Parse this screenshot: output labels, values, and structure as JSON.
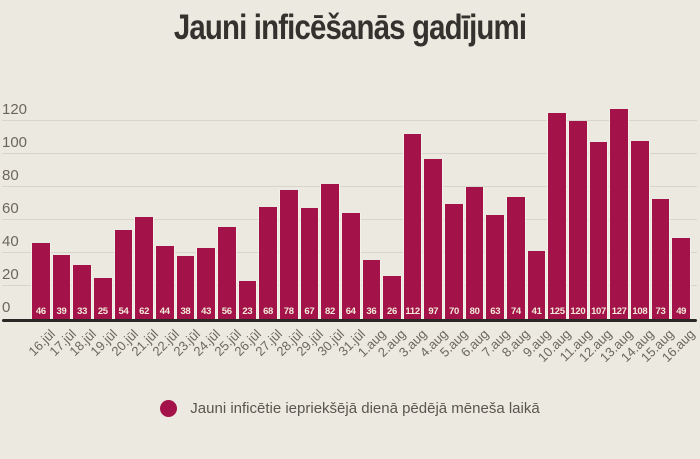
{
  "title": "Jauni inficēšanās gadījumi",
  "legend": {
    "label": "Jauni inficētie iepriekšējā dienā pēdējā mēneša laikā"
  },
  "colors": {
    "background": "#ece9e0",
    "bar": "#a31349",
    "bar_separator": "#f4f1e9",
    "grid": "#d8d5cc",
    "axis": "#2a2824",
    "title_text": "#34322e",
    "axis_label": "#6b675f",
    "value_label": "#f2ead9",
    "legend_text": "#5a564f"
  },
  "chart_data": {
    "type": "bar",
    "title": "Jauni inficēšanās gadījumi",
    "categories": [
      "16.jūl",
      "17.jūl",
      "18.jūl",
      "19.jūl",
      "20.jūl",
      "21.jūl",
      "22.jūl",
      "23.jūl",
      "24.jūl",
      "25.jūl",
      "26.jūl",
      "27.jūl",
      "28.jūl",
      "29.jūl",
      "30.jūl",
      "31.jūl",
      "1.aug",
      "2.aug",
      "3.aug",
      "4.aug",
      "5.aug",
      "6.aug",
      "7.aug",
      "8.aug",
      "9.aug",
      "10.aug",
      "11.aug",
      "12.aug",
      "13.aug",
      "14.aug",
      "15.aug",
      "16.aug"
    ],
    "values": [
      46,
      39,
      33,
      25,
      54,
      62,
      44,
      38,
      43,
      56,
      23,
      68,
      78,
      67,
      82,
      64,
      36,
      26,
      112,
      97,
      70,
      80,
      63,
      74,
      41,
      125,
      120,
      107,
      127,
      108,
      73,
      49
    ],
    "xlabel": "",
    "ylabel": "",
    "yticks": [
      0,
      20,
      40,
      60,
      80,
      100,
      120
    ],
    "ylim": [
      0,
      130
    ],
    "grid": true,
    "bar_value_labels": true,
    "legend_position": "bottom",
    "legend_entries": [
      "Jauni inficētie iepriekšējā dienā pēdējā mēneša laikā"
    ]
  }
}
